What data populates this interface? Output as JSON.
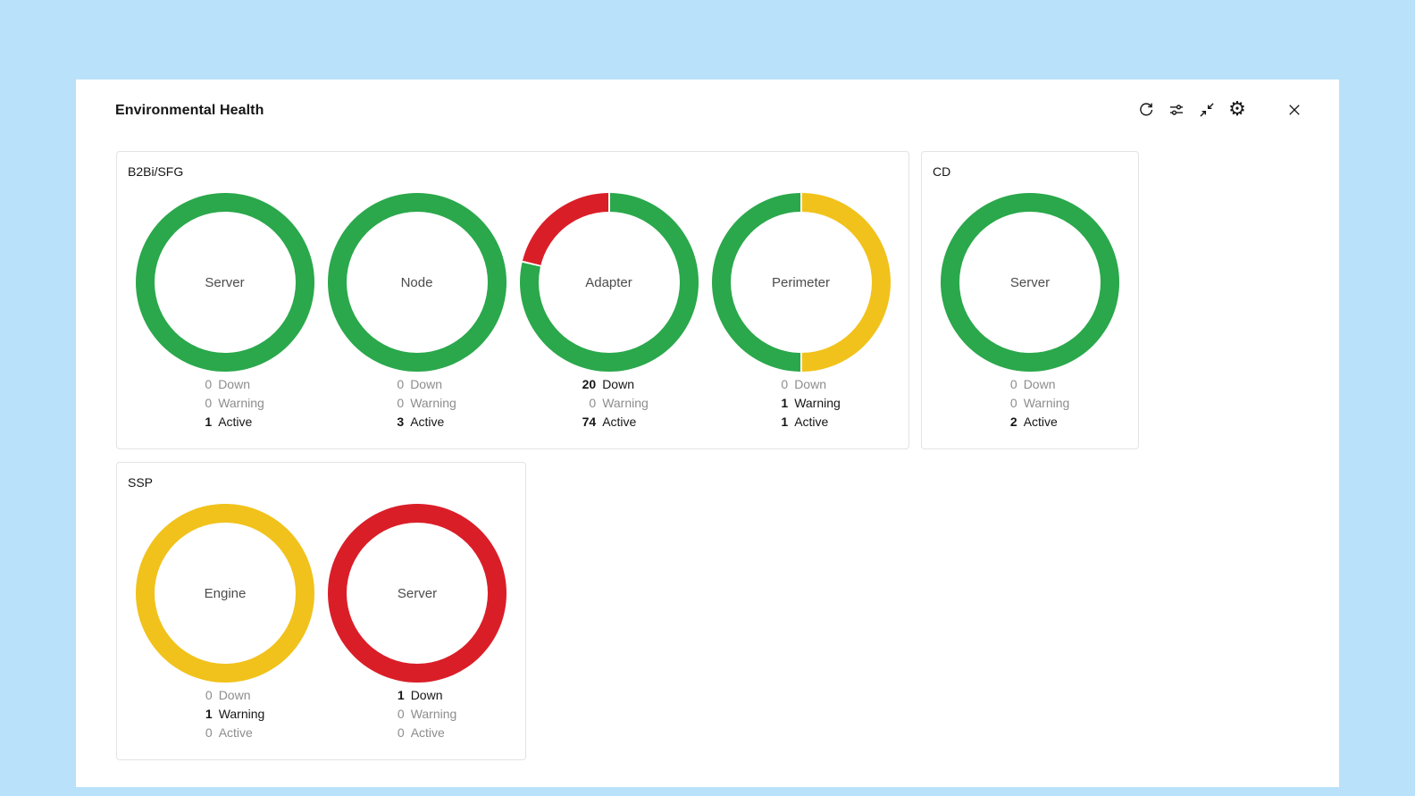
{
  "header": {
    "title": "Environmental Health"
  },
  "toolbar": {
    "icons": [
      "refresh-icon",
      "filter-sliders-icon",
      "collapse-icon",
      "gear-icon",
      "close-icon"
    ]
  },
  "colors": {
    "background": "#b9e1fa",
    "panel": "#ffffff",
    "down": "#da1e28",
    "warning": "#f1c21b",
    "active": "#2aa84b",
    "muted_text": "#8d8d8d",
    "text": "#161616"
  },
  "stat_labels": {
    "down": "Down",
    "warning": "Warning",
    "active": "Active"
  },
  "groups": [
    {
      "title": "B2Bi/SFG",
      "donuts": [
        {
          "label": "Server",
          "down": 0,
          "warning": 0,
          "active": 1
        },
        {
          "label": "Node",
          "down": 0,
          "warning": 0,
          "active": 3
        },
        {
          "label": "Adapter",
          "down": 20,
          "warning": 0,
          "active": 74
        },
        {
          "label": "Perimeter",
          "down": 0,
          "warning": 1,
          "active": 1
        }
      ]
    },
    {
      "title": "CD",
      "donuts": [
        {
          "label": "Server",
          "down": 0,
          "warning": 0,
          "active": 2
        }
      ]
    },
    {
      "title": "SSP",
      "donuts": [
        {
          "label": "Engine",
          "down": 0,
          "warning": 1,
          "active": 0
        },
        {
          "label": "Server",
          "down": 1,
          "warning": 0,
          "active": 0
        }
      ]
    }
  ]
}
